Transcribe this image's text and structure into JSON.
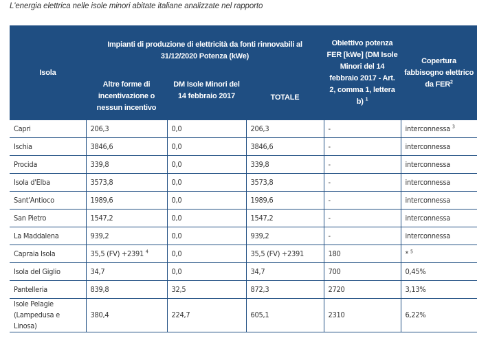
{
  "caption": "L'energia elettrica nelle isole minori abitate italiane analizzate nel rapporto",
  "header": {
    "isola": "Isola",
    "impianti_title": "Impianti di produzione di elettricità da fonti rinnovabili al 31/12/2020 Potenza (kWe)",
    "col_altre": "Altre forme di incentivazione o nessun incentivo",
    "col_dm": "DM Isole Minori del 14 febbraio 2017",
    "col_totale": "TOTALE",
    "col_obiettivo": "Obiettivo potenza FER [kWe] (DM Isole Minori del 14 febbraio 2017 - Art. 2, comma 1, lettera b)",
    "col_obiettivo_sup": "1",
    "col_copertura": "Copertura fabbisogno elettrico da FER",
    "col_copertura_sup": "2"
  },
  "rows": [
    {
      "isola": "Capri",
      "altre": "206,3",
      "altre_sup": "",
      "dm": "0,0",
      "totale": "206,3",
      "obiettivo": "-",
      "copertura": "interconnessa",
      "copertura_sup": "3"
    },
    {
      "isola": "Ischia",
      "altre": "3846,6",
      "altre_sup": "",
      "dm": "0,0",
      "totale": "3846,6",
      "obiettivo": "-",
      "copertura": "interconnessa",
      "copertura_sup": ""
    },
    {
      "isola": "Procida",
      "altre": "339,8",
      "altre_sup": "",
      "dm": "0,0",
      "totale": "339,8",
      "obiettivo": "-",
      "copertura": "interconnessa",
      "copertura_sup": ""
    },
    {
      "isola": "Isola d'Elba",
      "altre": "3573,8",
      "altre_sup": "",
      "dm": "0,0",
      "totale": "3573,8",
      "obiettivo": "-",
      "copertura": "interconnessa",
      "copertura_sup": ""
    },
    {
      "isola": "Sant'Antioco",
      "altre": "1989,6",
      "altre_sup": "",
      "dm": "0,0",
      "totale": "1989,6",
      "obiettivo": "-",
      "copertura": "interconnessa",
      "copertura_sup": ""
    },
    {
      "isola": "San Pietro",
      "altre": "1547,2",
      "altre_sup": "",
      "dm": "0,0",
      "totale": "1547,2",
      "obiettivo": "-",
      "copertura": "interconnessa",
      "copertura_sup": ""
    },
    {
      "isola": "La Maddalena",
      "altre": "939,2",
      "altre_sup": "",
      "dm": "0,0",
      "totale": "939,2",
      "obiettivo": "-",
      "copertura": "interconnessa",
      "copertura_sup": ""
    },
    {
      "isola": "Capraia Isola",
      "altre": "35,5 (FV) +2391",
      "altre_sup": "4",
      "dm": "0,0",
      "totale": "35,5 (FV) +2391",
      "obiettivo": "180",
      "copertura": "*",
      "copertura_sup": "5"
    },
    {
      "isola": "Isola del Giglio",
      "altre": "34,7",
      "altre_sup": "",
      "dm": "0,0",
      "totale": "34,7",
      "obiettivo": "700",
      "copertura": "0,45%",
      "copertura_sup": ""
    },
    {
      "isola": "Pantelleria",
      "altre": "839,8",
      "altre_sup": "",
      "dm": "32,5",
      "totale": "872,3",
      "obiettivo": "2720",
      "copertura": "3,13%",
      "copertura_sup": ""
    },
    {
      "isola": "Isole Pelagie (Lampedusa e Linosa)",
      "altre": "380,4",
      "altre_sup": "",
      "dm": "224,7",
      "totale": "605,1",
      "obiettivo": "2310",
      "copertura": "6,22%",
      "copertura_sup": ""
    }
  ]
}
